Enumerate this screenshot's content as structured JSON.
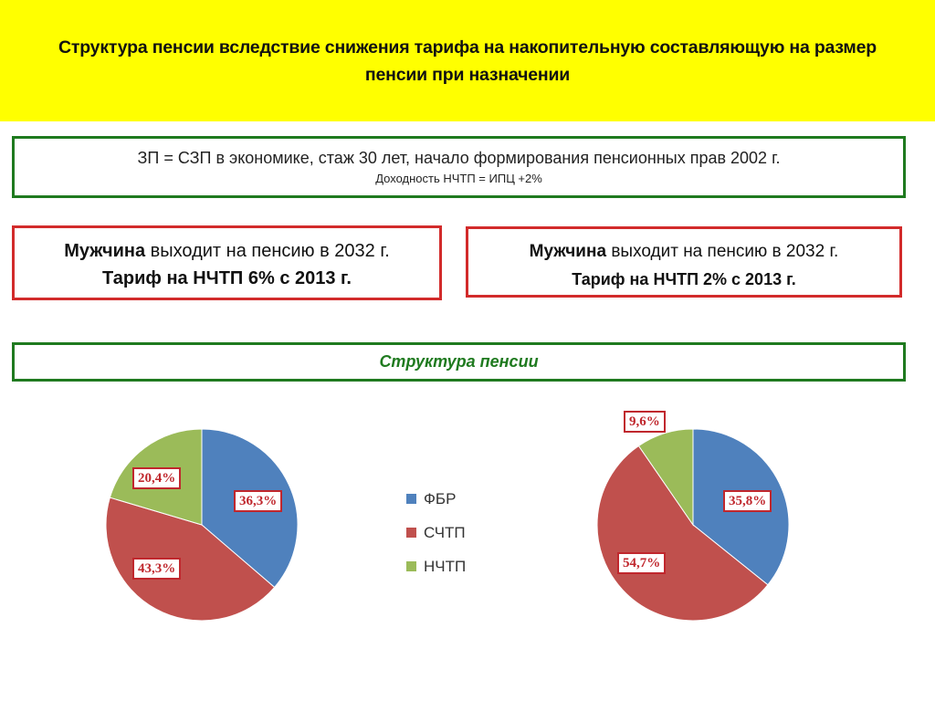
{
  "header": {
    "title": "Структура пенсии вследствие снижения тарифа на накопительную составляющую на размер пенсии при назначении",
    "background": "#ffff00"
  },
  "conditions": {
    "line1": "ЗП = СЗП в экономике, стаж 30 лет, начало формирования пенсионных прав 2002 г.",
    "line2": "Доходность НЧТП = ИПЦ +2%"
  },
  "cases": [
    {
      "subject": "Мужчина",
      "retire": " выходит на пенсию в 2032 г.",
      "tariff": "Тариф на НЧТП 6% с 2013 г."
    },
    {
      "subject": "Мужчина",
      "retire": " выходит на пенсию в 2032 г.",
      "tariff": "Тариф на НЧТП 2% с 2013 г."
    }
  ],
  "section_title": "Структура пенсии",
  "legend": [
    {
      "label": "ФБР",
      "color": "#4f81bd"
    },
    {
      "label": "СЧТП",
      "color": "#c0504d"
    },
    {
      "label": "НЧТП",
      "color": "#9bbb59"
    }
  ],
  "chart_data": [
    {
      "type": "pie",
      "title": "Тариф на НЧТП 6% с 2013 г.",
      "categories": [
        "ФБР",
        "СЧТП",
        "НЧТП"
      ],
      "values": [
        36.3,
        43.3,
        20.4
      ],
      "labels": [
        "36,3%",
        "43,3%",
        "20,4%"
      ],
      "colors": [
        "#4f81bd",
        "#c0504d",
        "#9bbb59"
      ],
      "legend_position": "right"
    },
    {
      "type": "pie",
      "title": "Тариф на НЧТП 2% с 2013 г.",
      "categories": [
        "ФБР",
        "СЧТП",
        "НЧТП"
      ],
      "values": [
        35.8,
        54.7,
        9.6
      ],
      "labels": [
        "35,8%",
        "54,7%",
        "9,6%"
      ],
      "colors": [
        "#4f81bd",
        "#c0504d",
        "#9bbb59"
      ],
      "legend_position": "left"
    }
  ]
}
